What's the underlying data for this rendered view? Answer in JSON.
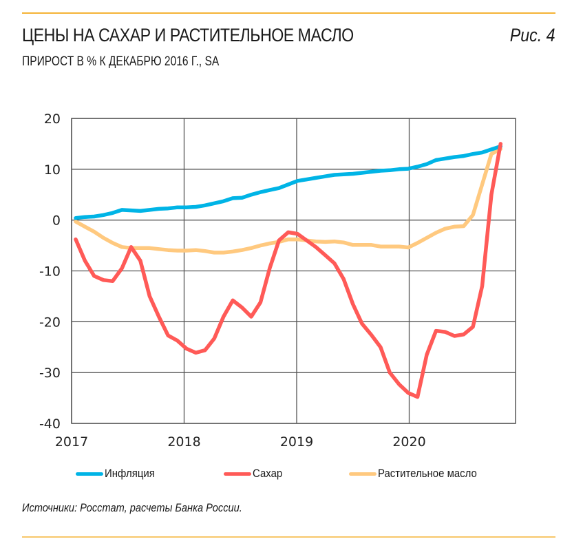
{
  "header": {
    "title": "ЦЕНЫ НА САХАР И РАСТИТЕЛЬНОЕ МАСЛО",
    "figure_label": "Рис. 4",
    "subtitle": "ПРИРОСТ В % К ДЕКАБРЮ 2016 Г., SA"
  },
  "source": "Источники: Росстат, расчеты Банка России.",
  "colors": {
    "inflation": "#00b4e6",
    "sugar": "#ff5a57",
    "oil": "#ffc97f",
    "grid": "#555555",
    "accent_rule": "#f5b335"
  },
  "chart_data": {
    "type": "line",
    "title": "ЦЕНЫ НА САХАР И РАСТИТЕЛЬНОЕ МАСЛО",
    "subtitle": "ПРИРОСТ В % К ДЕКАБРЮ 2016 Г., SA",
    "xlabel": "",
    "ylabel": "",
    "x_start": "2017-01",
    "x_frequency": "monthly",
    "x_ticks": [
      "2017",
      "2018",
      "2019",
      "2020"
    ],
    "xlim": [
      2017,
      2020.917
    ],
    "ylim": [
      -40,
      20
    ],
    "y_ticks": [
      "20",
      "10",
      "0",
      "-10",
      "-20",
      "-30",
      "-40"
    ],
    "y_tick_values": [
      20,
      10,
      0,
      -10,
      -20,
      -30,
      -40
    ],
    "grid": true,
    "legend_position": "bottom",
    "series": [
      {
        "name": "Инфляция",
        "key": "inflation",
        "values": [
          0.4,
          0.6,
          0.7,
          1.0,
          1.4,
          2.0,
          1.9,
          1.8,
          2.0,
          2.2,
          2.3,
          2.5,
          2.5,
          2.6,
          2.9,
          3.3,
          3.7,
          4.3,
          4.4,
          5.0,
          5.5,
          5.9,
          6.3,
          7.0,
          7.7,
          8.0,
          8.3,
          8.6,
          8.9,
          9.0,
          9.1,
          9.3,
          9.5,
          9.7,
          9.8,
          10.0,
          10.1,
          10.5,
          11.0,
          11.8,
          12.1,
          12.4,
          12.6,
          13.0,
          13.3,
          13.9,
          14.5
        ]
      },
      {
        "name": "Сахар",
        "key": "sugar",
        "values": [
          -3.8,
          -8.0,
          -11.0,
          -11.8,
          -12.0,
          -9.5,
          -5.3,
          -8.0,
          -15.0,
          -19.0,
          -22.7,
          -23.7,
          -25.3,
          -26.1,
          -25.6,
          -23.3,
          -19.0,
          -15.8,
          -17.2,
          -19.0,
          -16.2,
          -9.5,
          -4.0,
          -2.4,
          -2.7,
          -4.0,
          -5.3,
          -6.9,
          -8.5,
          -11.6,
          -16.5,
          -20.4,
          -22.6,
          -25.0,
          -30.0,
          -32.3,
          -34.0,
          -34.8,
          -26.5,
          -21.8,
          -22.0,
          -22.8,
          -22.5,
          -21.0,
          -13.0,
          5.0,
          15.0
        ]
      },
      {
        "name": "Растительное масло",
        "key": "oil",
        "values": [
          -0.3,
          -1.3,
          -2.3,
          -3.5,
          -4.5,
          -5.3,
          -5.5,
          -5.5,
          -5.5,
          -5.7,
          -5.9,
          -6.0,
          -6.0,
          -5.9,
          -6.1,
          -6.4,
          -6.4,
          -6.2,
          -5.9,
          -5.5,
          -5.0,
          -4.6,
          -4.3,
          -3.8,
          -3.8,
          -4.0,
          -4.2,
          -4.3,
          -4.2,
          -4.4,
          -4.9,
          -4.9,
          -4.9,
          -5.2,
          -5.2,
          -5.2,
          -5.4,
          -4.5,
          -3.5,
          -2.5,
          -1.7,
          -1.3,
          -1.2,
          1.0,
          7.0,
          13.0,
          14.0
        ]
      }
    ]
  }
}
